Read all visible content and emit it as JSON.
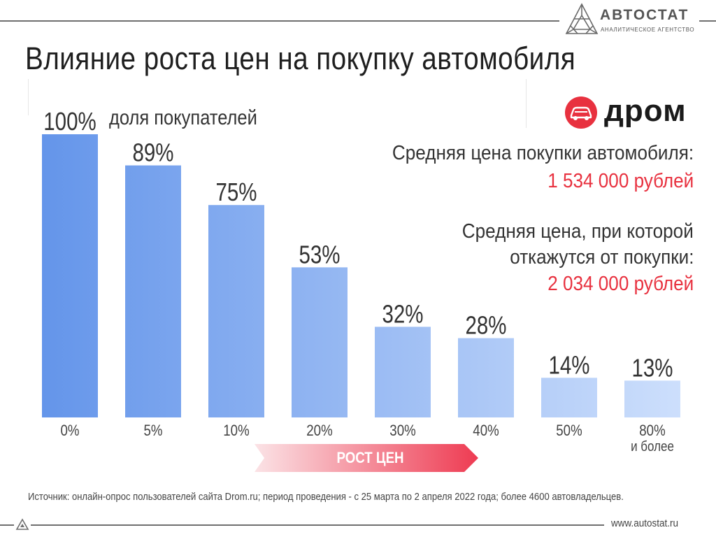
{
  "brand": {
    "name": "АВТОСТАТ",
    "subtitle": "АНАЛИТИЧЕСКОЕ АГЕНТСТВО",
    "url": "www.autostat.ru"
  },
  "partner": {
    "name": "дром"
  },
  "info": {
    "avg_price_label": "Средняя цена покупки автомобиля:",
    "avg_price_value": "1 534 000 рублей",
    "refuse_label_1": "Средняя цена, при которой",
    "refuse_label_2": "откажутся от покупки:",
    "refuse_value": "2 034 000 рублей"
  },
  "arrow_label": "РОСТ ЦЕН",
  "source": "Источник: онлайн-опрос пользователей сайта Drom.ru; период проведения - с 25 марта по 2 апреля 2022 года; более 4600 автовладельцев.",
  "colors": {
    "accent_red": "#e8313f",
    "bar_dark": "#6495ea",
    "bar_light": "#cddffc"
  },
  "chart_data": {
    "type": "bar",
    "title": "Влияние роста цен на покупку автомобиля",
    "ylabel": "доля покупателей",
    "xlabel": "РОСТ ЦЕН",
    "categories": [
      "0%",
      "5%",
      "10%",
      "20%",
      "30%",
      "40%",
      "50%",
      "80%\nи более"
    ],
    "values": [
      100,
      89,
      75,
      53,
      32,
      28,
      14,
      13
    ],
    "value_labels": [
      "100%",
      "89%",
      "75%",
      "53%",
      "32%",
      "28%",
      "14%",
      "13%"
    ],
    "ylim": [
      0,
      100
    ],
    "grid": false,
    "legend": "none"
  }
}
